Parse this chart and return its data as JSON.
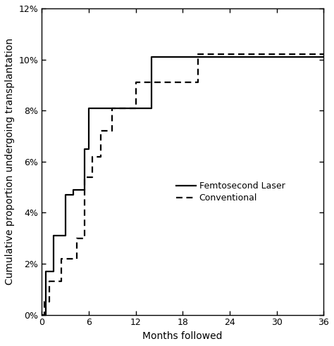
{
  "title": "",
  "xlabel": "Months followed",
  "ylabel": "Cumulative proportion undergoing transplantation",
  "xlim": [
    0,
    36
  ],
  "ylim": [
    0,
    0.12
  ],
  "xticks": [
    0,
    6,
    12,
    18,
    24,
    30,
    36
  ],
  "yticks": [
    0,
    0.02,
    0.04,
    0.06,
    0.08,
    0.1,
    0.12
  ],
  "ytick_labels": [
    "0%",
    "2%",
    "4%",
    "6%",
    "8%",
    "10%",
    "12%"
  ],
  "femto_x": [
    0,
    0.5,
    1.5,
    3.0,
    4.0,
    5.5,
    6.0,
    8.0,
    14.0,
    36.0
  ],
  "femto_y": [
    0,
    0.017,
    0.031,
    0.047,
    0.049,
    0.065,
    0.081,
    0.081,
    0.101,
    0.101
  ],
  "conv_x": [
    0,
    0.3,
    1.0,
    2.5,
    4.5,
    5.5,
    6.5,
    7.5,
    9.0,
    12.0,
    13.5,
    20.0,
    36.0
  ],
  "conv_y": [
    0,
    0.005,
    0.013,
    0.022,
    0.03,
    0.054,
    0.062,
    0.072,
    0.081,
    0.091,
    0.091,
    0.102,
    0.102
  ],
  "line_color": "#000000",
  "bg_color": "#ffffff",
  "legend_labels": [
    "Femtosecond Laser",
    "Conventional"
  ],
  "fontsize_axis_label": 10,
  "fontsize_tick": 9,
  "fontsize_legend": 9
}
